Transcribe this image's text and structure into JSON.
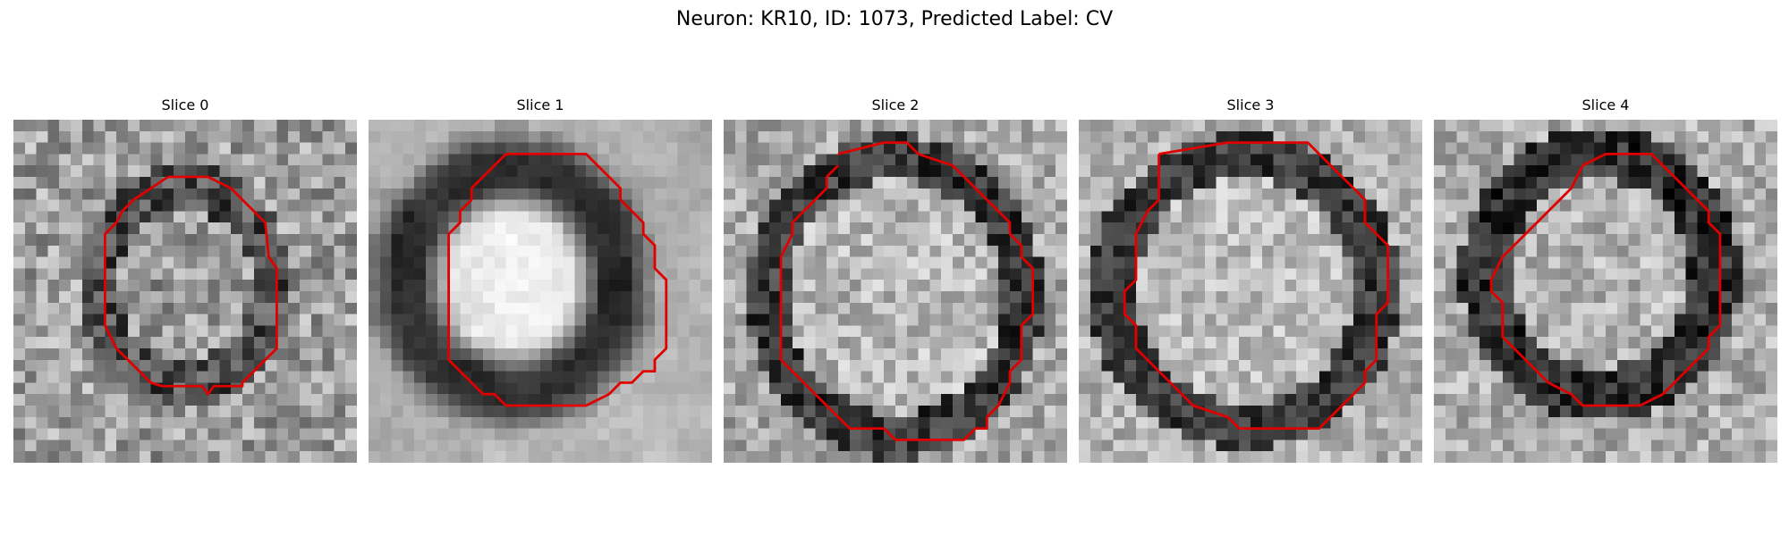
{
  "figure": {
    "suptitle": "Neuron: KR10, ID: 1073, Predicted Label: CV",
    "contour_color": "#e00000",
    "colormap": "gray"
  },
  "panels": [
    {
      "title": "Slice 0"
    },
    {
      "title": "Slice 1"
    },
    {
      "title": "Slice 2"
    },
    {
      "title": "Slice 3"
    },
    {
      "title": "Slice 4"
    }
  ]
}
